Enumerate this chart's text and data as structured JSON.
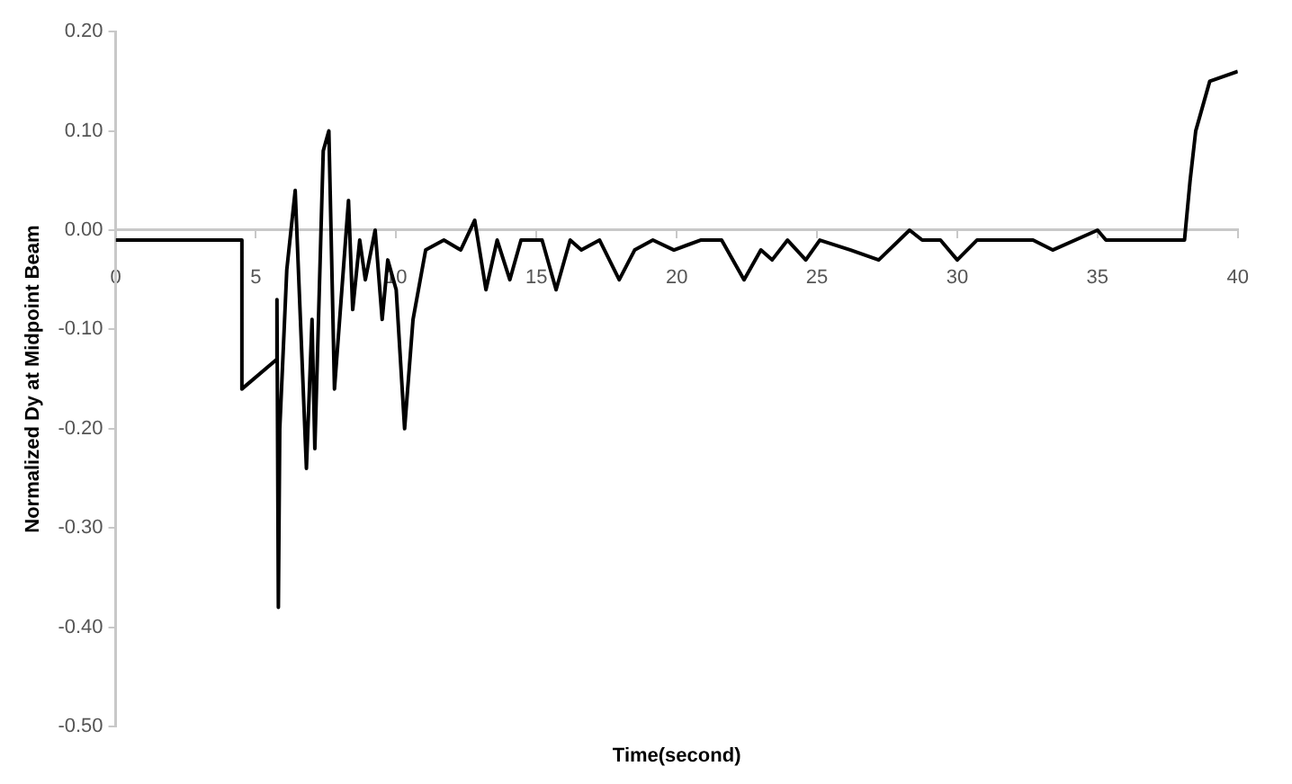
{
  "chart_data": {
    "type": "line",
    "xlabel": "Time(second)",
    "ylabel": "Normalized Dy at Midpoint Beam",
    "xlim": [
      0,
      40
    ],
    "xticks": [
      0,
      5,
      10,
      15,
      20,
      25,
      30,
      35,
      40
    ],
    "ylim": [
      -0.5,
      0.2
    ],
    "yticks": [
      {
        "value": -0.5,
        "label": "-0.50"
      },
      {
        "value": -0.4,
        "label": "-0.40"
      },
      {
        "value": -0.3,
        "label": "-0.30"
      },
      {
        "value": -0.2,
        "label": "-0.20"
      },
      {
        "value": -0.1,
        "label": "-0.10"
      },
      {
        "value": 0,
        "label": "0.00"
      },
      {
        "value": 0.1,
        "label": "0.10"
      },
      {
        "value": 0.2,
        "label": "0.20"
      }
    ],
    "legend": false,
    "marker": "none",
    "line_style": "solid",
    "series": [
      {
        "color": "#000000",
        "x": [
          0,
          4.5,
          4.5,
          5.75,
          5.75,
          5.8,
          5.85,
          6.1,
          6.4,
          6.8,
          7.0,
          7.1,
          7.4,
          7.6,
          7.8,
          8.3,
          8.45,
          8.7,
          8.9,
          9.25,
          9.5,
          9.7,
          10.0,
          10.3,
          10.6,
          11.05,
          11.7,
          12.3,
          12.8,
          13.2,
          13.6,
          14.05,
          14.45,
          14.9,
          15.2,
          15.7,
          16.2,
          16.6,
          17.25,
          17.95,
          18.5,
          19.15,
          19.9,
          20.85,
          21.6,
          22.4,
          23.0,
          23.4,
          23.95,
          24.6,
          25.1,
          26.2,
          27.2,
          28.3,
          28.75,
          29.4,
          30.0,
          30.7,
          31.5,
          32.7,
          33.4,
          35.0,
          35.3,
          36.8,
          38.1,
          38.3,
          38.5,
          39.0,
          40
        ],
        "values": [
          -0.01,
          -0.01,
          -0.16,
          -0.13,
          -0.07,
          -0.38,
          -0.2,
          -0.04,
          0.04,
          -0.24,
          -0.09,
          -0.22,
          0.08,
          0.1,
          -0.16,
          0.03,
          -0.08,
          -0.01,
          -0.05,
          0,
          -0.09,
          -0.03,
          -0.06,
          -0.2,
          -0.09,
          -0.02,
          -0.01,
          -0.02,
          0.01,
          -0.06,
          -0.01,
          -0.05,
          -0.01,
          -0.01,
          -0.01,
          -0.06,
          -0.01,
          -0.02,
          -0.01,
          -0.05,
          -0.02,
          -0.01,
          -0.02,
          -0.01,
          -0.01,
          -0.05,
          -0.02,
          -0.03,
          -0.01,
          -0.03,
          -0.01,
          -0.02,
          -0.03,
          0,
          -0.01,
          -0.01,
          -0.03,
          -0.01,
          -0.01,
          -0.01,
          -0.02,
          0,
          -0.01,
          -0.01,
          -0.01,
          0.05,
          0.1,
          0.15,
          0.16
        ]
      }
    ]
  }
}
